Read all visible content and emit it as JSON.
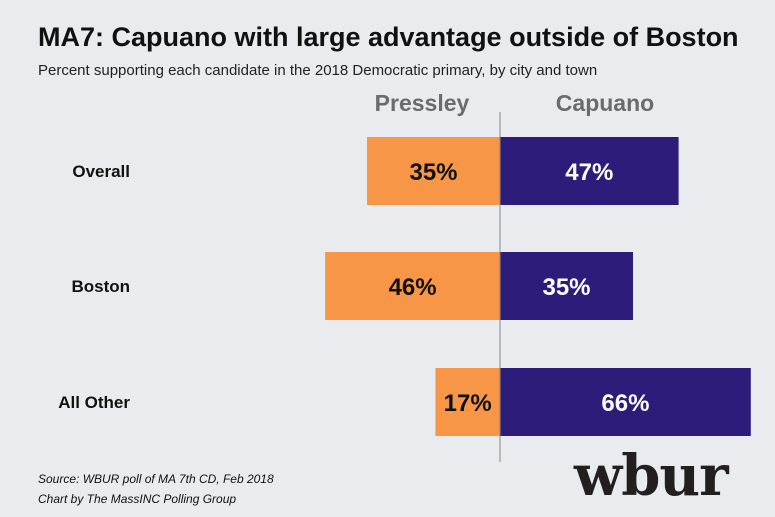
{
  "title": "MA7: Capuano with large advantage outside of Boston",
  "subtitle": "Percent supporting each candidate in the 2018 Democratic primary, by city and town",
  "source_line1": "Source: WBUR poll of MA 7th CD, Feb 2018",
  "source_line2": "Chart by The MassINC Polling Group",
  "logo_text": "wbur",
  "colors": {
    "pressley": "#f79646",
    "capuano": "#2e1c7a",
    "background": "#e9ebef"
  },
  "chart_data": {
    "type": "bar",
    "orientation": "diverging-horizontal",
    "categories": [
      "Overall",
      "Boston",
      "All Other"
    ],
    "series": [
      {
        "name": "Pressley",
        "values": [
          35,
          46,
          17
        ],
        "labels": [
          "35%",
          "46%",
          "17%"
        ]
      },
      {
        "name": "Capuano",
        "values": [
          47,
          35,
          66
        ],
        "labels": [
          "47%",
          "35%",
          "66%"
        ]
      }
    ],
    "grid": false
  }
}
